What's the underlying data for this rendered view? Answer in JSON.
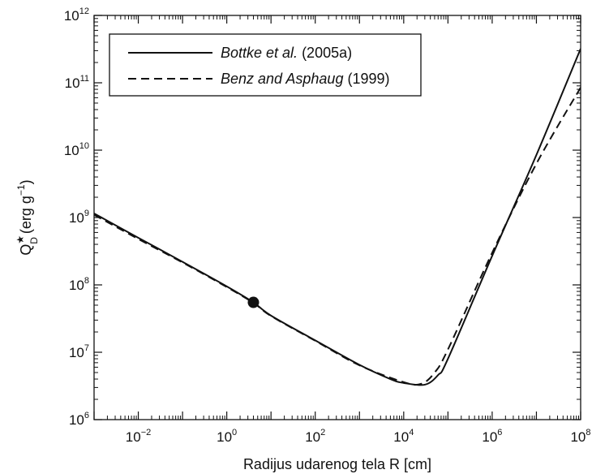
{
  "chart_data": {
    "type": "line",
    "xscale": "log",
    "yscale": "log",
    "xlim": [
      0.001,
      100000000
    ],
    "ylim": [
      1000000,
      1000000000000
    ],
    "xlabel": "Radijus udarenog tela R [cm]",
    "ylabel_main": "Q",
    "ylabel_sup": "★",
    "ylabel_sub": "D",
    "ylabel_units_pre": "(erg g",
    "ylabel_units_sup": "−1",
    "ylabel_units_post": ")",
    "x_ticks": [
      {
        "value": 0.01,
        "base": "10",
        "exp": "−2"
      },
      {
        "value": 1,
        "base": "10",
        "exp": "0"
      },
      {
        "value": 100,
        "base": "10",
        "exp": "2"
      },
      {
        "value": 10000,
        "base": "10",
        "exp": "4"
      },
      {
        "value": 1000000,
        "base": "10",
        "exp": "6"
      },
      {
        "value": 100000000,
        "base": "10",
        "exp": "8"
      }
    ],
    "y_ticks": [
      {
        "value": 1000000,
        "base": "10",
        "exp": "6"
      },
      {
        "value": 10000000,
        "base": "10",
        "exp": "7"
      },
      {
        "value": 100000000,
        "base": "10",
        "exp": "8"
      },
      {
        "value": 1000000000,
        "base": "10",
        "exp": "9"
      },
      {
        "value": 10000000000,
        "base": "10",
        "exp": "10"
      },
      {
        "value": 100000000000,
        "base": "10",
        "exp": "11"
      },
      {
        "value": 1000000000000,
        "base": "10",
        "exp": "12"
      }
    ],
    "legend_position": "top-left",
    "grid": false,
    "series": [
      {
        "name_italic": "Bottke et al.",
        "name_rest": " (2005a)",
        "style": "solid",
        "color": "#111111",
        "points": [
          [
            0.001,
            1150000000
          ],
          [
            0.01,
            500000000
          ],
          [
            0.1,
            220000000
          ],
          [
            1,
            95000000
          ],
          [
            4,
            55000000
          ],
          [
            10,
            35000000
          ],
          [
            100,
            15000000
          ],
          [
            1000,
            6500000
          ],
          [
            5000,
            4000000
          ],
          [
            10000,
            3500000
          ],
          [
            30000,
            3300000
          ],
          [
            60000,
            4600000
          ],
          [
            100000,
            8000000
          ],
          [
            1000000,
            270000000
          ],
          [
            10000000,
            8500000000
          ],
          [
            100000000,
            320000000000
          ]
        ]
      },
      {
        "name_italic": "Benz and Asphaug",
        "name_rest": " (1999)",
        "style": "dashed",
        "color": "#111111",
        "points": [
          [
            0.001,
            1100000000
          ],
          [
            0.01,
            480000000
          ],
          [
            0.1,
            215000000
          ],
          [
            1,
            93000000
          ],
          [
            4,
            54000000
          ],
          [
            10,
            34500000
          ],
          [
            100,
            14800000
          ],
          [
            1000,
            6400000
          ],
          [
            10000,
            3600000
          ],
          [
            25000,
            3400000
          ],
          [
            50000,
            5000000
          ],
          [
            100000,
            11000000
          ],
          [
            1000000,
            300000000
          ],
          [
            10000000,
            6300000000
          ],
          [
            100000000,
            85000000000
          ]
        ]
      }
    ],
    "marker": {
      "x": 4,
      "y": 55000000
    }
  }
}
